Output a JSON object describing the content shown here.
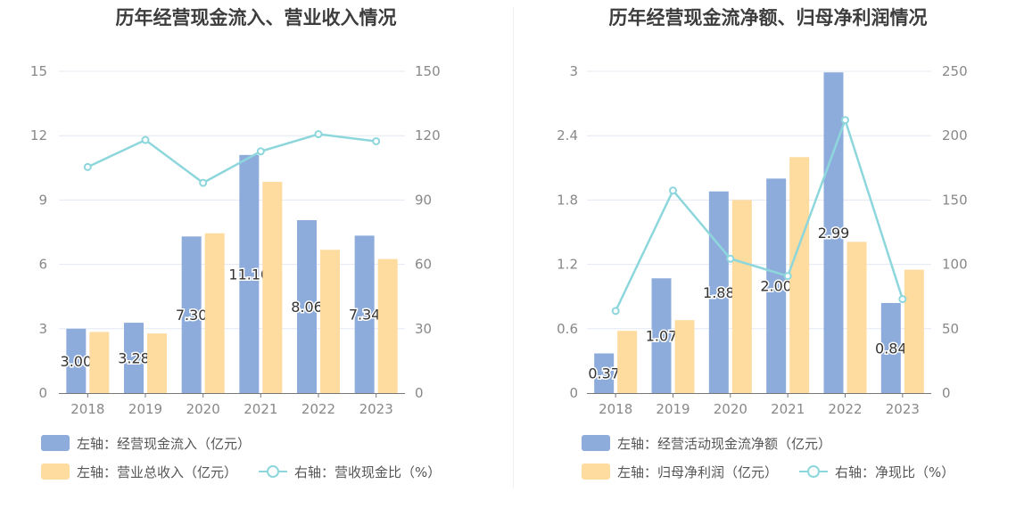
{
  "colors": {
    "bar_primary": "#8eacdb",
    "bar_secondary": "#fedb9f",
    "line": "#8dd7dc",
    "grid": "#e3e8f3",
    "axis": "#777777",
    "tick_text": "#888888",
    "label_text": "#333333"
  },
  "chart_data": [
    {
      "type": "bar",
      "title": "历年经营现金流入、营业收入情况",
      "categories": [
        "2018",
        "2019",
        "2020",
        "2021",
        "2022",
        "2023"
      ],
      "y_left": {
        "ticks": [
          "0",
          "3",
          "6",
          "9",
          "12",
          "15"
        ],
        "ylim": [
          0,
          15
        ]
      },
      "y_right": {
        "ticks": [
          "0",
          "30",
          "60",
          "90",
          "120",
          "150"
        ],
        "ylim": [
          0,
          150
        ]
      },
      "series": [
        {
          "name": "左轴：经营现金流入（亿元）",
          "kind": "bar",
          "axis": "left",
          "values": [
            3.0,
            3.28,
            7.3,
            11.1,
            8.06,
            7.34
          ],
          "labels": [
            "3.00",
            "3.28",
            "7.30",
            "11.10",
            "8.06",
            "7.34"
          ]
        },
        {
          "name": "左轴：营业总收入（亿元）",
          "kind": "bar",
          "axis": "left",
          "values": [
            2.85,
            2.78,
            7.45,
            9.85,
            6.68,
            6.25
          ]
        },
        {
          "name": "右轴：营收现金比（%）",
          "kind": "line",
          "axis": "right",
          "values": [
            105.4,
            118.0,
            98.0,
            112.7,
            120.7,
            117.4
          ]
        }
      ]
    },
    {
      "type": "bar",
      "title": "历年经营现金流净额、归母净利润情况",
      "categories": [
        "2018",
        "2019",
        "2020",
        "2021",
        "2022",
        "2023"
      ],
      "y_left": {
        "ticks": [
          "0",
          "0.6",
          "1.2",
          "1.8",
          "2.4",
          "3"
        ],
        "ylim": [
          0,
          3
        ]
      },
      "y_right": {
        "ticks": [
          "0",
          "50",
          "100",
          "150",
          "200",
          "250"
        ],
        "ylim": [
          0,
          250
        ]
      },
      "series": [
        {
          "name": "左轴：经营活动现金流净额（亿元）",
          "kind": "bar",
          "axis": "left",
          "values": [
            0.37,
            1.07,
            1.88,
            2.0,
            2.99,
            0.84
          ],
          "labels": [
            "0.37",
            "1.07",
            "1.88",
            "2.00",
            "2.99",
            "0.84"
          ]
        },
        {
          "name": "左轴：归母净利润（亿元）",
          "kind": "bar",
          "axis": "left",
          "values": [
            0.58,
            0.68,
            1.8,
            2.2,
            1.41,
            1.15
          ]
        },
        {
          "name": "右轴：净现比（%）",
          "kind": "line",
          "axis": "right",
          "values": [
            63.8,
            157.4,
            104.4,
            90.9,
            212.1,
            73.0
          ]
        }
      ]
    }
  ]
}
